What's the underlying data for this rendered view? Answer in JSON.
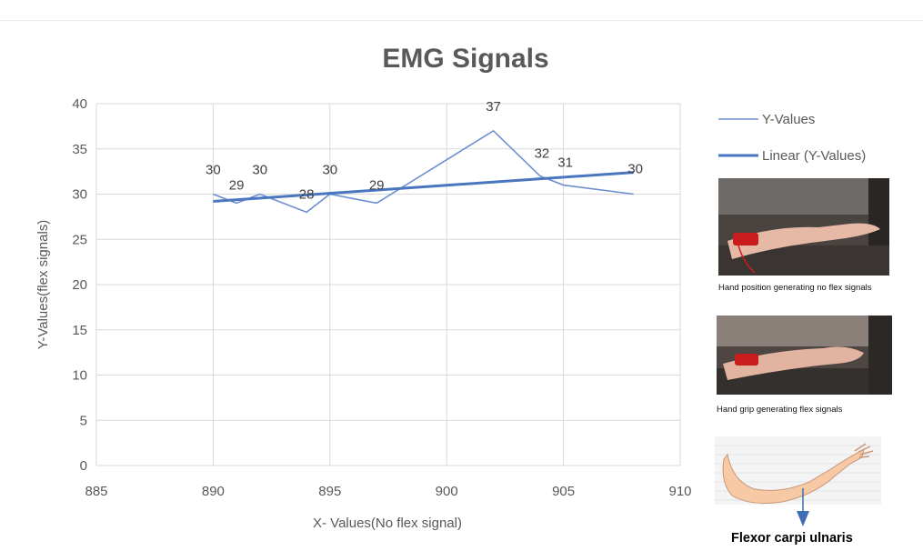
{
  "chart_data": {
    "type": "line",
    "title": "EMG Signals",
    "xlabel": "X- Values(No flex signal)",
    "ylabel": "Y-Values(flex signals)",
    "xlim": [
      885,
      910
    ],
    "ylim": [
      0,
      40
    ],
    "xticks": [
      885,
      890,
      895,
      900,
      905,
      910
    ],
    "yticks": [
      0,
      5,
      10,
      15,
      20,
      25,
      30,
      35,
      40
    ],
    "grid": true,
    "legend_position": "right",
    "series": [
      {
        "name": "Y-Values",
        "color": "#6b8fd1",
        "x": [
          890,
          891,
          892,
          894,
          895,
          897,
          902,
          904,
          905,
          908
        ],
        "y": [
          30,
          29,
          30,
          28,
          30,
          29,
          37,
          32,
          31,
          30
        ],
        "labels": [
          "30",
          "29",
          "30",
          "28",
          "30",
          "29",
          "37",
          "32",
          "31",
          "30"
        ]
      },
      {
        "name": "Linear (Y-Values)",
        "color": "#4a76c0",
        "style": "trendline",
        "x": [
          890,
          908
        ],
        "y": [
          29.2,
          32.4
        ]
      }
    ]
  },
  "side_panel": {
    "photo1_caption": "Hand position generating no flex signals",
    "photo2_caption": "Hand grip generating flex signals",
    "muscle_label": "Flexor carpi ulnaris"
  }
}
